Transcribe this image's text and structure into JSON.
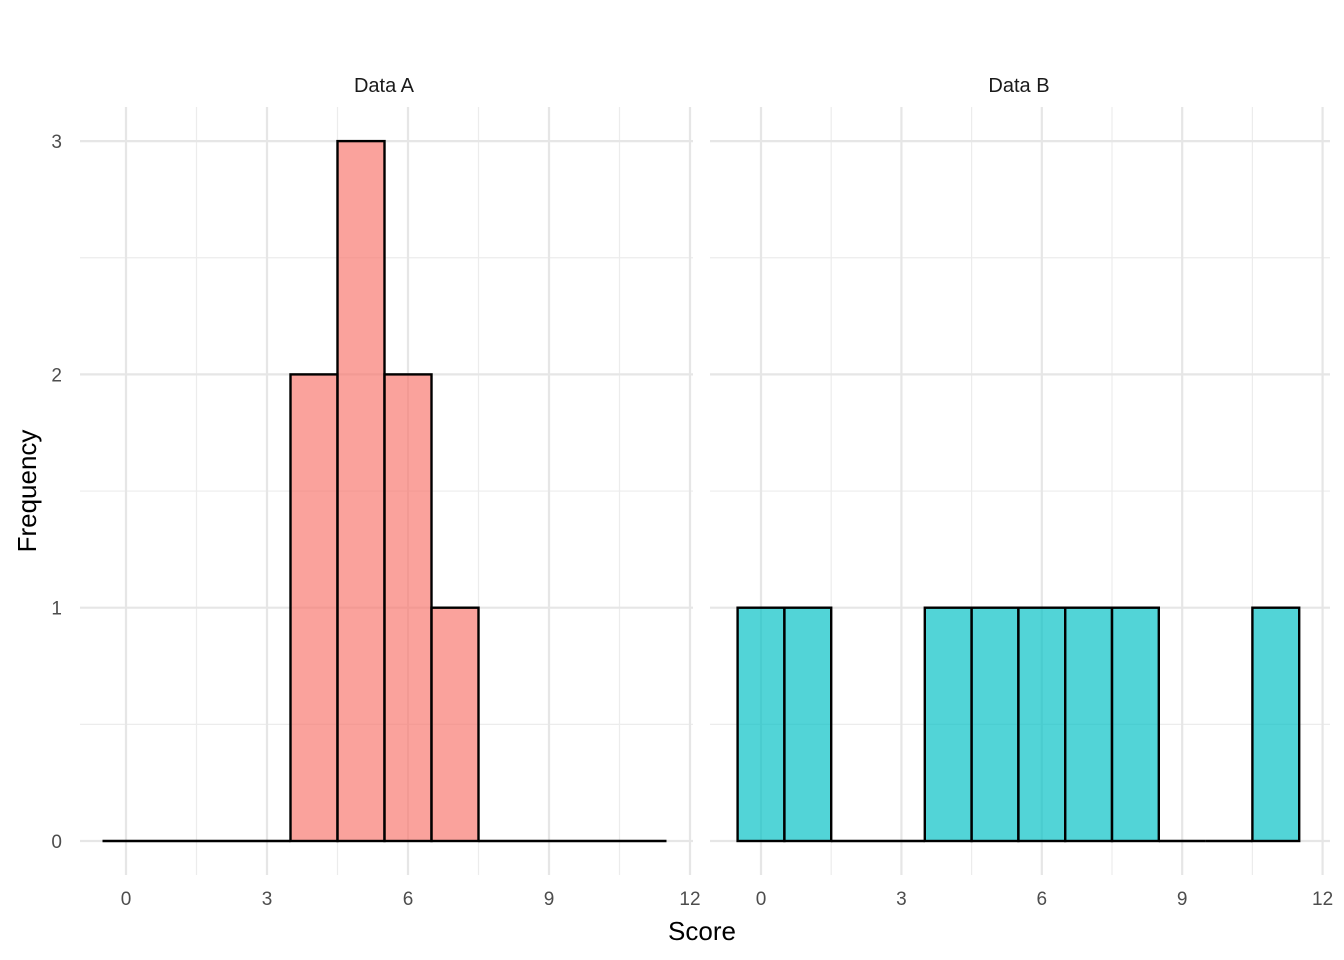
{
  "chart_data": {
    "type": "bar",
    "subtype": "histogram",
    "xlabel": "Score",
    "ylabel": "Frequency",
    "xlim": [
      -0.5,
      11.5
    ],
    "ylim": [
      0,
      3
    ],
    "x_ticks": [
      "0",
      "3",
      "6",
      "9",
      "12"
    ],
    "y_ticks": [
      "0",
      "1",
      "2",
      "3"
    ],
    "bin_width": 1,
    "grid": true,
    "legend": "none",
    "facets": [
      {
        "title": "Data A",
        "color": "#F8766D",
        "bins": [
          0,
          1,
          2,
          3,
          4,
          5,
          6,
          7,
          8,
          9,
          10,
          11
        ],
        "values": [
          0,
          0,
          0,
          0,
          2,
          3,
          2,
          1,
          0,
          0,
          0,
          0
        ]
      },
      {
        "title": "Data B",
        "color": "#00BFC4",
        "bins": [
          0,
          1,
          2,
          3,
          4,
          5,
          6,
          7,
          8,
          9,
          10,
          11
        ],
        "values": [
          1,
          1,
          0,
          0,
          1,
          1,
          1,
          1,
          1,
          0,
          0,
          1
        ]
      }
    ]
  }
}
